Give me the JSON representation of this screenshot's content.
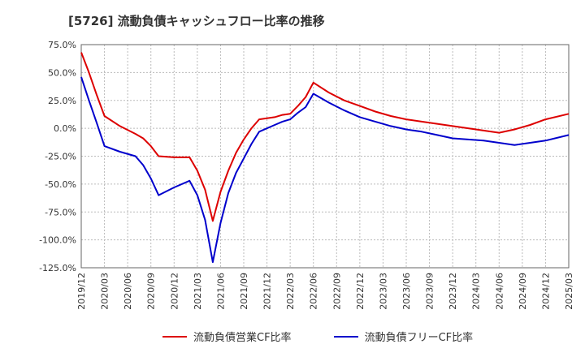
{
  "chart_data": {
    "type": "line",
    "title": "[5726]  流動負債キャッシュフロー比率の推移",
    "y_ticks": [
      "75.0%",
      "50.0%",
      "25.0%",
      "0.0%",
      "-25.0%",
      "-50.0%",
      "-75.0%",
      "-100.0%",
      "-125.0%"
    ],
    "y_tick_values": [
      75,
      50,
      25,
      0,
      -25,
      -50,
      -75,
      -100,
      -125
    ],
    "ylim": [
      -125,
      75
    ],
    "x_ticks": [
      "2019/12",
      "2020/03",
      "2020/06",
      "2020/09",
      "2020/12",
      "2021/03",
      "2021/06",
      "2021/09",
      "2021/12",
      "2022/03",
      "2022/06",
      "2022/09",
      "2022/12",
      "2023/03",
      "2023/06",
      "2023/09",
      "2023/12",
      "2024/03",
      "2024/06",
      "2024/09",
      "2024/12",
      "2025/03"
    ],
    "grid": true,
    "legend_position": "bottom",
    "series": [
      {
        "name": "流動負債営業CF比率",
        "color": "#dd0000",
        "values": [
          [
            "2019/12",
            68
          ],
          [
            "2020/01",
            50
          ],
          [
            "2020/02",
            30
          ],
          [
            "2020/03",
            11
          ],
          [
            "2020/05",
            2
          ],
          [
            "2020/07",
            -5
          ],
          [
            "2020/08",
            -9
          ],
          [
            "2020/09",
            -16
          ],
          [
            "2020/10",
            -25
          ],
          [
            "2020/12",
            -26
          ],
          [
            "2021/02",
            -26
          ],
          [
            "2021/03",
            -38
          ],
          [
            "2021/04",
            -55
          ],
          [
            "2021/05",
            -83
          ],
          [
            "2021/06",
            -57
          ],
          [
            "2021/07",
            -38
          ],
          [
            "2021/08",
            -22
          ],
          [
            "2021/09",
            -10
          ],
          [
            "2021/10",
            0
          ],
          [
            "2021/11",
            8
          ],
          [
            "2022/01",
            10
          ],
          [
            "2022/02",
            12
          ],
          [
            "2022/03",
            13
          ],
          [
            "2022/04",
            20
          ],
          [
            "2022/05",
            28
          ],
          [
            "2022/06",
            41
          ],
          [
            "2022/08",
            32
          ],
          [
            "2022/10",
            25
          ],
          [
            "2022/12",
            20
          ],
          [
            "2023/02",
            15
          ],
          [
            "2023/04",
            11
          ],
          [
            "2023/06",
            8
          ],
          [
            "2023/08",
            6
          ],
          [
            "2023/10",
            4
          ],
          [
            "2023/12",
            2
          ],
          [
            "2024/02",
            0
          ],
          [
            "2024/04",
            -2
          ],
          [
            "2024/06",
            -4
          ],
          [
            "2024/08",
            -1
          ],
          [
            "2024/10",
            3
          ],
          [
            "2024/12",
            8
          ],
          [
            "2025/03",
            13
          ]
        ]
      },
      {
        "name": "流動負債フリーCF比率",
        "color": "#0000cc",
        "values": [
          [
            "2019/12",
            46
          ],
          [
            "2020/01",
            25
          ],
          [
            "2020/02",
            5
          ],
          [
            "2020/03",
            -16
          ],
          [
            "2020/05",
            -21
          ],
          [
            "2020/07",
            -25
          ],
          [
            "2020/08",
            -33
          ],
          [
            "2020/09",
            -45
          ],
          [
            "2020/10",
            -60
          ],
          [
            "2020/12",
            -53
          ],
          [
            "2021/02",
            -47
          ],
          [
            "2021/03",
            -60
          ],
          [
            "2021/04",
            -82
          ],
          [
            "2021/05",
            -120
          ],
          [
            "2021/06",
            -85
          ],
          [
            "2021/07",
            -58
          ],
          [
            "2021/08",
            -40
          ],
          [
            "2021/09",
            -27
          ],
          [
            "2021/10",
            -14
          ],
          [
            "2021/11",
            -3
          ],
          [
            "2022/01",
            3
          ],
          [
            "2022/02",
            6
          ],
          [
            "2022/03",
            8
          ],
          [
            "2022/04",
            14
          ],
          [
            "2022/05",
            19
          ],
          [
            "2022/06",
            31
          ],
          [
            "2022/08",
            23
          ],
          [
            "2022/10",
            16
          ],
          [
            "2022/12",
            10
          ],
          [
            "2023/02",
            6
          ],
          [
            "2023/04",
            2
          ],
          [
            "2023/06",
            -1
          ],
          [
            "2023/08",
            -3
          ],
          [
            "2023/10",
            -6
          ],
          [
            "2023/12",
            -9
          ],
          [
            "2024/02",
            -10
          ],
          [
            "2024/04",
            -11
          ],
          [
            "2024/06",
            -13
          ],
          [
            "2024/08",
            -15
          ],
          [
            "2024/10",
            -13
          ],
          [
            "2024/12",
            -11
          ],
          [
            "2025/03",
            -6
          ]
        ]
      }
    ]
  }
}
